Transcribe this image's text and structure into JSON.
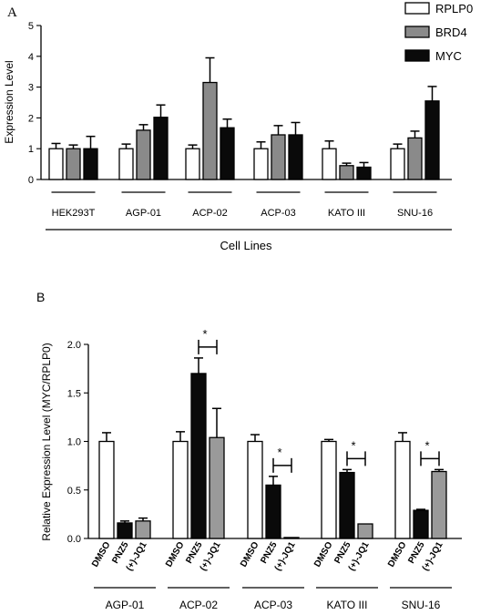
{
  "panels": {
    "a": {
      "label": "A"
    },
    "b": {
      "label": "B"
    }
  },
  "colors": {
    "white": "#ffffff",
    "gray": "#8a8a8a",
    "black": "#0a0a0a",
    "lightgray": "#9a9a9a"
  },
  "chart_data": [
    {
      "id": "panel-a",
      "type": "bar",
      "ylabel": "Expression Level",
      "xlabel": "Cell Lines",
      "ylim": [
        0,
        5
      ],
      "yticks": [
        "0",
        "1",
        "2",
        "3",
        "4",
        "5"
      ],
      "categories": [
        "HEK293T",
        "AGP-01",
        "ACP-02",
        "ACP-03",
        "KATO III",
        "SNU-16"
      ],
      "legend_position": "top-right",
      "series": [
        {
          "name": "RPLP0",
          "color": "#ffffff",
          "values": [
            1.0,
            1.0,
            1.0,
            1.0,
            1.0,
            1.0
          ],
          "errors": [
            0.17,
            0.15,
            0.12,
            0.22,
            0.25,
            0.15
          ]
        },
        {
          "name": "BRD4",
          "color": "#8a8a8a",
          "values": [
            1.0,
            1.6,
            3.15,
            1.45,
            0.45,
            1.35
          ],
          "errors": [
            0.12,
            0.18,
            0.8,
            0.3,
            0.08,
            0.22
          ]
        },
        {
          "name": "MYC",
          "color": "#0a0a0a",
          "values": [
            1.0,
            2.02,
            1.68,
            1.45,
            0.4,
            2.55
          ],
          "errors": [
            0.4,
            0.4,
            0.28,
            0.4,
            0.15,
            0.47
          ]
        }
      ]
    },
    {
      "id": "panel-b",
      "type": "bar",
      "ylabel": "Relative Expression Level (MYC/RPLP0)",
      "ylim": [
        0,
        2.0
      ],
      "yticks": [
        "0.0",
        "0.5",
        "1.0",
        "1.5",
        "2.0"
      ],
      "bar_labels": [
        "DMSO",
        "PNZ5",
        "(+)-JQ1"
      ],
      "bar_colors": [
        "#ffffff",
        "#0a0a0a",
        "#9a9a9a"
      ],
      "significance_marker": "*",
      "groups": [
        {
          "name": "AGP-01",
          "values": [
            1.0,
            0.16,
            0.18
          ],
          "errors": [
            0.09,
            0.02,
            0.03
          ],
          "significance": false
        },
        {
          "name": "ACP-02",
          "values": [
            1.0,
            1.7,
            1.04
          ],
          "errors": [
            0.1,
            0.16,
            0.3
          ],
          "significance": true
        },
        {
          "name": "ACP-03",
          "values": [
            1.0,
            0.55,
            0.01
          ],
          "errors": [
            0.07,
            0.09,
            0.0
          ],
          "significance": true
        },
        {
          "name": "KATO III",
          "values": [
            1.0,
            0.68,
            0.15
          ],
          "errors": [
            0.02,
            0.03,
            0.0
          ],
          "significance": true
        },
        {
          "name": "SNU-16",
          "values": [
            1.0,
            0.29,
            0.69
          ],
          "errors": [
            0.09,
            0.01,
            0.02
          ],
          "significance": true
        }
      ]
    }
  ]
}
